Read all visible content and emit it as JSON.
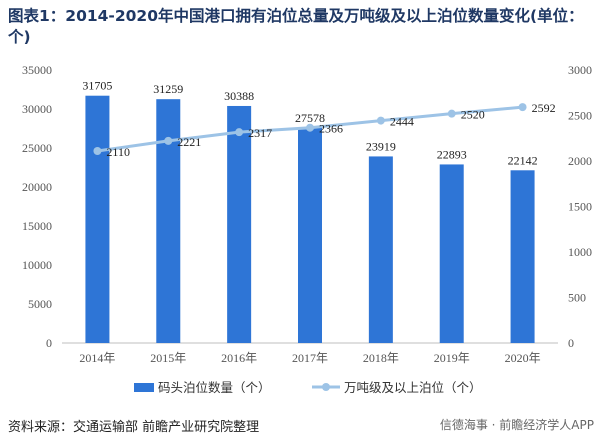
{
  "title": "图表1：2014-2020年中国港口拥有泊位总量及万吨级及以上泊位数量变化(单位：个)",
  "source": "资料来源：交通运输部 前瞻产业研究院整理",
  "watermark": "信德海事 · 前瞻经济学人APP",
  "colors": {
    "bar": "#2e75d6",
    "line": "#9dc3e6",
    "title": "#1f3864"
  },
  "chart_data": {
    "type": "bar",
    "categories": [
      "2014年",
      "2015年",
      "2016年",
      "2017年",
      "2018年",
      "2019年",
      "2020年"
    ],
    "series": [
      {
        "name": "码头泊位数量（个）",
        "type": "bar",
        "axis": "left",
        "values": [
          31705,
          31259,
          30388,
          27578,
          23919,
          22893,
          22142
        ]
      },
      {
        "name": "万吨级及以上泊位（个）",
        "type": "line",
        "axis": "right",
        "values": [
          2110,
          2221,
          2317,
          2366,
          2444,
          2520,
          2592
        ]
      }
    ],
    "ylim_left": [
      0,
      35000
    ],
    "yticks_left": [
      0,
      5000,
      10000,
      15000,
      20000,
      25000,
      30000,
      35000
    ],
    "ylim_right": [
      0,
      3000
    ],
    "yticks_right": [
      0,
      500,
      1000,
      1500,
      2000,
      2500,
      3000
    ],
    "grid": false,
    "legend": "bottom"
  }
}
